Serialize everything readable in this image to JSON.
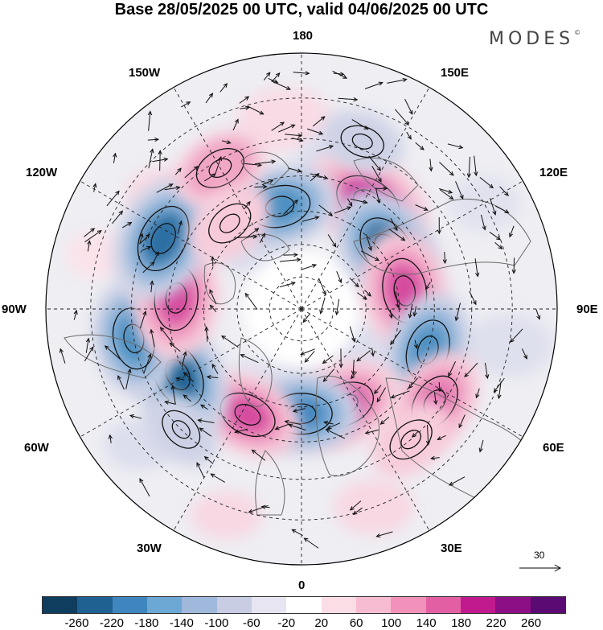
{
  "header": {
    "title": "Base 28/05/2025 00 UTC, valid 04/06/2025 00 UTC",
    "brand": "MODES",
    "brand_mark": "©"
  },
  "map": {
    "projection": "north polar stereographic",
    "longitude_labels": {
      "top": "180",
      "bottom": "0",
      "left": "90W",
      "right": "90E",
      "upper_left_1": "150W",
      "upper_left_2": "120W",
      "upper_right_1": "150E",
      "upper_right_2": "120E",
      "lower_left_1": "60W",
      "lower_left_2": "30W",
      "lower_right_1": "60E",
      "lower_right_2": "30E"
    },
    "reference_vector": "30",
    "anomaly_centers": [
      {
        "lon": 148,
        "lat": 52,
        "value": 200,
        "color": "#c11a8f"
      },
      {
        "lon": 125,
        "lat": 58,
        "value": -200,
        "color": "#1f6191"
      },
      {
        "lon": 100,
        "lat": 58,
        "value": 180,
        "color": "#d5489e"
      },
      {
        "lon": 72,
        "lat": 50,
        "value": -160,
        "color": "#4a8fc1"
      },
      {
        "lon": 55,
        "lat": 42,
        "value": 140,
        "color": "#e06fae"
      },
      {
        "lon": 24,
        "lat": 58,
        "value": 160,
        "color": "#d5489e"
      },
      {
        "lon": 0,
        "lat": 58,
        "value": -160,
        "color": "#3f86bf"
      },
      {
        "lon": -27,
        "lat": 54,
        "value": 140,
        "color": "#d5489e"
      },
      {
        "lon": -62,
        "lat": 48,
        "value": -200,
        "color": "#1f6191"
      },
      {
        "lon": -80,
        "lat": 40,
        "value": -160,
        "color": "#4a8fc1"
      },
      {
        "lon": -95,
        "lat": 52,
        "value": 180,
        "color": "#d5489e"
      },
      {
        "lon": -117,
        "lat": 44,
        "value": -200,
        "color": "#2c6ea3"
      },
      {
        "lon": -168,
        "lat": 58,
        "value": -160,
        "color": "#4a8fc1"
      },
      {
        "lon": -150,
        "lat": 42,
        "value": 100,
        "color": "#f2a9c6"
      },
      {
        "lon": -140,
        "lat": 56,
        "value": 80,
        "color": "#f7c6d8"
      },
      {
        "lon": -45,
        "lat": 40,
        "value": -60,
        "color": "#c8cde3"
      },
      {
        "lon": 40,
        "lat": 40,
        "value": 80,
        "color": "#f7c6d8"
      },
      {
        "lon": 160,
        "lat": 38,
        "value": -60,
        "color": "#c8cde3"
      }
    ]
  },
  "colorbar": {
    "colors": [
      "#0e3d5e",
      "#1f6191",
      "#3f86bf",
      "#6da7d4",
      "#9fb8dc",
      "#c8cde3",
      "#e6e5f1",
      "#ffffff",
      "#fbdde6",
      "#f7bcd1",
      "#f291b9",
      "#e35fa4",
      "#c11a8f",
      "#8d0f86",
      "#5a0a73"
    ],
    "ticks": [
      "-260",
      "-220",
      "-180",
      "-140",
      "-100",
      "-60",
      "-20",
      "20",
      "60",
      "100",
      "140",
      "180",
      "220",
      "260"
    ]
  }
}
